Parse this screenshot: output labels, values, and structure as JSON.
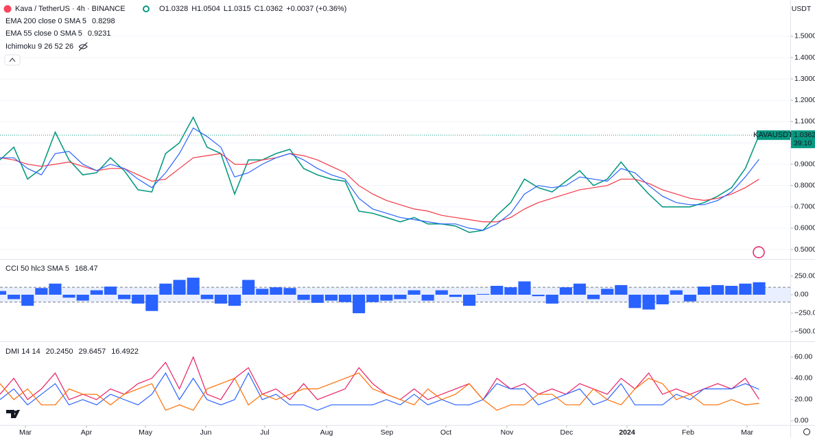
{
  "header": {
    "title": "Kava / TetherUS · 4h · BINANCE",
    "ohlc": [
      {
        "label": "O",
        "value": "1.0328"
      },
      {
        "label": "H",
        "value": "1.0504"
      },
      {
        "label": "L",
        "value": "1.0315"
      },
      {
        "label": "C",
        "value": "1.0362"
      }
    ],
    "change": "+0.0037 (+0.36%)",
    "hidden_indicator": "Ichimoku 9 26 52 26",
    "currency": "USDT",
    "symbol": "KAVAUSDT",
    "countdown": "39:10"
  },
  "chart_data": [
    {
      "type": "line",
      "xlim": [
        0,
        57.26
      ],
      "ylim": [
        0.455,
        1.67
      ],
      "yticks": [
        {
          "value": 0.5,
          "label": "0.5000"
        },
        {
          "value": 0.6,
          "label": "0.6000"
        },
        {
          "value": 0.7,
          "label": "0.7000"
        },
        {
          "value": 0.8,
          "label": "0.8000"
        },
        {
          "value": 0.9,
          "label": "0.9000"
        },
        {
          "value": 1.0,
          "label": "1.0000"
        },
        {
          "value": 1.1,
          "label": "1.1000"
        },
        {
          "value": 1.2,
          "label": "1.2000"
        },
        {
          "value": 1.3,
          "label": "1.3000"
        },
        {
          "value": 1.4,
          "label": "1.4000"
        },
        {
          "value": 1.5,
          "label": "1.5000"
        }
      ],
      "grid": true,
      "series": [
        {
          "name": "KAVAUSDT",
          "color": "#089981",
          "values": [
            0.92,
            0.98,
            0.83,
            0.88,
            1.05,
            0.92,
            0.85,
            0.86,
            0.93,
            0.87,
            0.78,
            0.77,
            0.95,
            1.0,
            1.12,
            0.98,
            0.95,
            0.76,
            0.92,
            0.92,
            0.95,
            0.97,
            0.88,
            0.85,
            0.83,
            0.82,
            0.68,
            0.67,
            0.65,
            0.63,
            0.65,
            0.62,
            0.62,
            0.61,
            0.58,
            0.59,
            0.66,
            0.72,
            0.83,
            0.79,
            0.77,
            0.82,
            0.87,
            0.8,
            0.83,
            0.91,
            0.83,
            0.76,
            0.7,
            0.7,
            0.7,
            0.72,
            0.75,
            0.79,
            0.88,
            1.0362
          ]
        },
        {
          "name": "EMA 200 close 0 SMA 5",
          "color": "#f23645",
          "values": [
            0.93,
            0.92,
            0.9,
            0.89,
            0.9,
            0.91,
            0.89,
            0.87,
            0.88,
            0.88,
            0.85,
            0.82,
            0.83,
            0.88,
            0.93,
            0.94,
            0.95,
            0.9,
            0.9,
            0.92,
            0.93,
            0.95,
            0.94,
            0.92,
            0.89,
            0.86,
            0.8,
            0.76,
            0.73,
            0.71,
            0.69,
            0.68,
            0.66,
            0.65,
            0.64,
            0.63,
            0.63,
            0.65,
            0.69,
            0.72,
            0.74,
            0.76,
            0.78,
            0.79,
            0.8,
            0.83,
            0.83,
            0.81,
            0.78,
            0.76,
            0.74,
            0.73,
            0.74,
            0.76,
            0.79,
            0.8298
          ]
        },
        {
          "name": "EMA 55 close 0 SMA 5",
          "color": "#2962ff",
          "values": [
            0.93,
            0.93,
            0.88,
            0.85,
            0.95,
            0.96,
            0.9,
            0.87,
            0.9,
            0.88,
            0.83,
            0.79,
            0.86,
            0.95,
            1.07,
            1.03,
            0.98,
            0.84,
            0.86,
            0.9,
            0.93,
            0.95,
            0.92,
            0.88,
            0.85,
            0.83,
            0.74,
            0.69,
            0.67,
            0.65,
            0.64,
            0.63,
            0.62,
            0.62,
            0.6,
            0.59,
            0.62,
            0.67,
            0.76,
            0.8,
            0.79,
            0.8,
            0.84,
            0.83,
            0.82,
            0.88,
            0.86,
            0.8,
            0.75,
            0.72,
            0.71,
            0.71,
            0.73,
            0.77,
            0.84,
            0.9231
          ]
        }
      ]
    },
    {
      "type": "bar",
      "title": "CCI 50 hlc3 SMA 5",
      "ylim": [
        -630,
        481
      ],
      "yticks": [
        {
          "value": 250,
          "label": "250.00"
        },
        {
          "value": 0,
          "label": "0.00"
        },
        {
          "value": -250,
          "label": "−250.00"
        },
        {
          "value": -500,
          "label": "−500.00"
        }
      ],
      "bands": [
        -100,
        100
      ],
      "series": [
        {
          "color": "#2962ff",
          "values": [
            50,
            -60,
            -150,
            90,
            150,
            -40,
            -80,
            60,
            110,
            -60,
            -120,
            -220,
            150,
            200,
            230,
            -60,
            -120,
            -150,
            200,
            80,
            100,
            90,
            -70,
            -110,
            -80,
            -100,
            -250,
            -100,
            -80,
            -60,
            60,
            -80,
            60,
            -30,
            -150,
            10,
            120,
            100,
            180,
            -20,
            -120,
            100,
            150,
            -60,
            80,
            130,
            -180,
            -200,
            -130,
            60,
            -90,
            110,
            130,
            120,
            150,
            168.47
          ]
        }
      ]
    },
    {
      "type": "line",
      "title": "DMI 14 14",
      "last_labels": [
        "20.2450",
        "29.6457",
        "16.4922"
      ],
      "ylim": [
        -3.9,
        74.8
      ],
      "yticks": [
        {
          "value": 60,
          "label": "60.00"
        },
        {
          "value": 40,
          "label": "40.00"
        },
        {
          "value": 20,
          "label": "20.00"
        },
        {
          "value": 0,
          "label": "0.00"
        }
      ],
      "xticks": [
        {
          "value": 1.84,
          "label": "Mar"
        },
        {
          "value": 6.26,
          "label": "Apr"
        },
        {
          "value": 10.54,
          "label": "May"
        },
        {
          "value": 14.91,
          "label": "Jun"
        },
        {
          "value": 19.18,
          "label": "Jul"
        },
        {
          "value": 23.66,
          "label": "Aug"
        },
        {
          "value": 28.03,
          "label": "Sep"
        },
        {
          "value": 32.31,
          "label": "Oct"
        },
        {
          "value": 36.73,
          "label": "Nov"
        },
        {
          "value": 41.05,
          "label": "Dec"
        },
        {
          "value": 45.43,
          "label": "2024"
        },
        {
          "value": 49.85,
          "label": "Feb"
        },
        {
          "value": 54.13,
          "label": "Mar"
        }
      ],
      "series": [
        {
          "color": "#e91e63",
          "values": [
            25,
            40,
            20,
            30,
            45,
            20,
            25,
            20,
            30,
            25,
            35,
            40,
            55,
            30,
            60,
            25,
            20,
            40,
            50,
            25,
            30,
            20,
            35,
            20,
            25,
            30,
            50,
            35,
            25,
            20,
            30,
            20,
            25,
            30,
            35,
            20,
            40,
            30,
            35,
            25,
            30,
            25,
            35,
            30,
            25,
            40,
            30,
            45,
            25,
            30,
            25,
            30,
            35,
            30,
            40,
            20.245
          ]
        },
        {
          "color": "#2962ff",
          "values": [
            20,
            30,
            15,
            25,
            35,
            15,
            20,
            15,
            25,
            20,
            15,
            25,
            45,
            20,
            40,
            20,
            15,
            20,
            45,
            20,
            25,
            15,
            15,
            10,
            15,
            15,
            15,
            15,
            20,
            15,
            25,
            15,
            20,
            15,
            15,
            20,
            35,
            30,
            30,
            15,
            20,
            25,
            30,
            15,
            20,
            35,
            15,
            15,
            15,
            25,
            20,
            30,
            30,
            30,
            35,
            29.6457
          ]
        },
        {
          "color": "#ff6d00",
          "values": [
            35,
            20,
            30,
            15,
            15,
            30,
            25,
            25,
            15,
            25,
            30,
            35,
            10,
            15,
            10,
            30,
            35,
            40,
            15,
            25,
            20,
            25,
            30,
            30,
            35,
            40,
            45,
            30,
            25,
            20,
            15,
            30,
            20,
            25,
            35,
            20,
            10,
            15,
            15,
            25,
            25,
            15,
            15,
            30,
            20,
            15,
            30,
            40,
            35,
            20,
            25,
            15,
            15,
            20,
            15,
            16.4922
          ]
        }
      ]
    }
  ]
}
